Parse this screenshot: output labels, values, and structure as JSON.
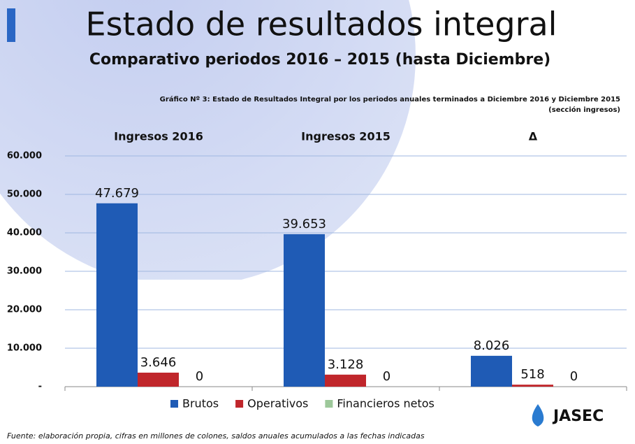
{
  "chart_data": {
    "type": "bar",
    "title": "Estado de resultados integral",
    "subtitle": "Comparativo periodos 2016 – 2015 (hasta Diciembre)",
    "chart_caption": "Gráfico Nº 3: Estado de Resultados Integral por los periodos anuales terminados a Diciembre 2016 y Diciembre 2015",
    "chart_caption_2": "(sección ingresos)",
    "categories": [
      "Ingresos 2016",
      "Ingresos 2015",
      "Δ"
    ],
    "series": [
      {
        "name": "Brutos",
        "color": "#1f5bb5",
        "values": [
          47679,
          39653,
          8026
        ],
        "value_labels": [
          "47.679",
          "39.653",
          "8.026"
        ]
      },
      {
        "name": "Operativos",
        "color": "#c0262b",
        "values": [
          3646,
          3128,
          518
        ],
        "value_labels": [
          "3.646",
          "3.128",
          "518"
        ]
      },
      {
        "name": "Financieros netos",
        "color": "#9dc89a",
        "values": [
          0,
          0,
          0
        ],
        "value_labels": [
          "0",
          "0",
          "0"
        ]
      }
    ],
    "ylim": [
      0,
      60000
    ],
    "yticks": [
      {
        "value": 0,
        "label": "-"
      },
      {
        "value": 10000,
        "label": "10.000"
      },
      {
        "value": 20000,
        "label": "20.000"
      },
      {
        "value": 30000,
        "label": "30.000"
      },
      {
        "value": 40000,
        "label": "40.000"
      },
      {
        "value": 50000,
        "label": "50.000"
      },
      {
        "value": 60000,
        "label": "60.000"
      }
    ],
    "grid": true,
    "legend": "bottom",
    "source": "Fuente: elaboración propia, cifras en millones de colones, saldos anuales acumulados a las fechas indicadas",
    "logo": "JASEC"
  }
}
